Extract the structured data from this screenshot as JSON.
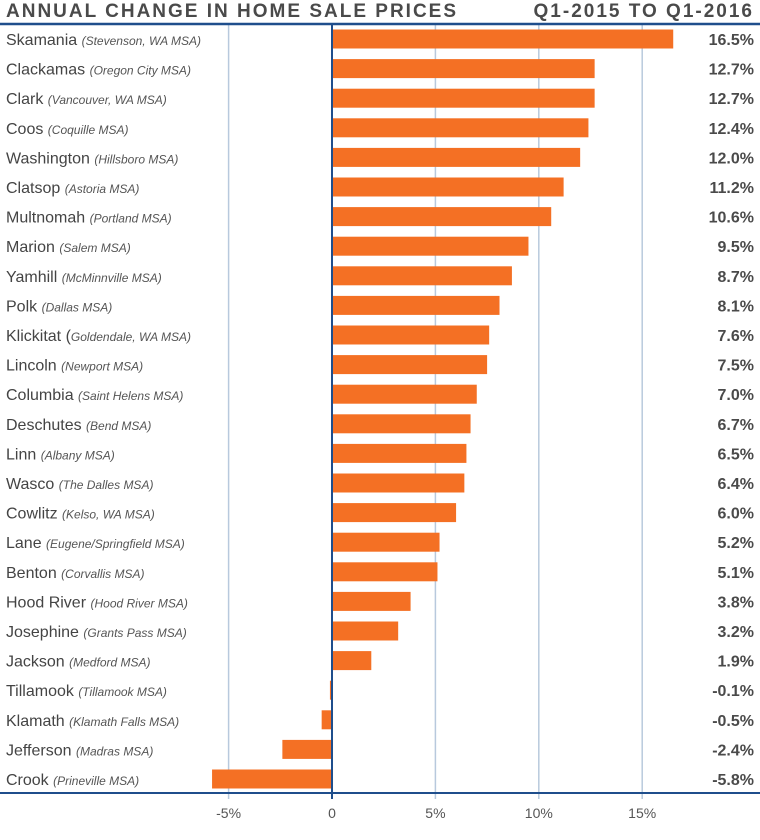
{
  "header": {
    "title": "ANNUAL CHANGE IN HOME SALE PRICES",
    "period": "Q1-2015 TO Q1-2016"
  },
  "colors": {
    "bar": "#f47024",
    "axis": "#1f4e8c",
    "grid": "#b8c9dd",
    "text": "#444444"
  },
  "chart_data": {
    "type": "bar",
    "orientation": "horizontal",
    "title": "ANNUAL CHANGE IN HOME SALE PRICES",
    "subtitle": "Q1-2015 TO Q1-2016",
    "xlabel": "",
    "ylabel": "",
    "xlim": [
      -6,
      17
    ],
    "grid": true,
    "x_ticks": [
      {
        "value": -5,
        "label": "-5%"
      },
      {
        "value": 0,
        "label": "0"
      },
      {
        "value": 5,
        "label": "5%"
      },
      {
        "value": 10,
        "label": "10%"
      },
      {
        "value": 15,
        "label": "15%"
      }
    ],
    "categories": [
      {
        "name": "Skamania",
        "msa": "(Stevenson, WA MSA)",
        "value": 16.5,
        "label": "16.5%"
      },
      {
        "name": "Clackamas",
        "msa": "(Oregon City MSA)",
        "value": 12.7,
        "label": "12.7%"
      },
      {
        "name": "Clark",
        "msa": "(Vancouver, WA MSA)",
        "value": 12.7,
        "label": "12.7%"
      },
      {
        "name": "Coos",
        "msa": "(Coquille MSA)",
        "value": 12.4,
        "label": "12.4%"
      },
      {
        "name": "Washington",
        "msa": "(Hillsboro MSA)",
        "value": 12.0,
        "label": "12.0%"
      },
      {
        "name": "Clatsop",
        "msa": "(Astoria MSA)",
        "value": 11.2,
        "label": "11.2%"
      },
      {
        "name": "Multnomah",
        "msa": "(Portland MSA)",
        "value": 10.6,
        "label": "10.6%"
      },
      {
        "name": "Marion",
        "msa": "(Salem MSA)",
        "value": 9.5,
        "label": "9.5%"
      },
      {
        "name": "Yamhill",
        "msa": "(McMinnville MSA)",
        "value": 8.7,
        "label": "8.7%"
      },
      {
        "name": "Polk",
        "msa": "(Dallas MSA)",
        "value": 8.1,
        "label": "8.1%"
      },
      {
        "name": "Klickitat (",
        "msa": "Goldendale, WA MSA)",
        "value": 7.6,
        "label": "7.6%"
      },
      {
        "name": "Lincoln",
        "msa": "(Newport MSA)",
        "value": 7.5,
        "label": "7.5%"
      },
      {
        "name": "Columbia",
        "msa": "(Saint Helens MSA)",
        "value": 7.0,
        "label": "7.0%"
      },
      {
        "name": "Deschutes",
        "msa": "(Bend MSA)",
        "value": 6.7,
        "label": "6.7%"
      },
      {
        "name": "Linn",
        "msa": "(Albany MSA)",
        "value": 6.5,
        "label": "6.5%"
      },
      {
        "name": "Wasco",
        "msa": "(The Dalles MSA)",
        "value": 6.4,
        "label": "6.4%"
      },
      {
        "name": "Cowlitz",
        "msa": "(Kelso, WA MSA)",
        "value": 6.0,
        "label": "6.0%"
      },
      {
        "name": "Lane",
        "msa": "(Eugene/Springfield MSA)",
        "value": 5.2,
        "label": "5.2%"
      },
      {
        "name": "Benton",
        "msa": "(Corvallis MSA)",
        "value": 5.1,
        "label": "5.1%"
      },
      {
        "name": "Hood River",
        "msa": "(Hood River MSA)",
        "value": 3.8,
        "label": "3.8%"
      },
      {
        "name": "Josephine",
        "msa": "(Grants Pass MSA)",
        "value": 3.2,
        "label": "3.2%"
      },
      {
        "name": "Jackson",
        "msa": "(Medford MSA)",
        "value": 1.9,
        "label": "1.9%"
      },
      {
        "name": "Tillamook",
        "msa": "(Tillamook MSA)",
        "value": -0.1,
        "label": "-0.1%"
      },
      {
        "name": "Klamath",
        "msa": "(Klamath Falls MSA)",
        "value": -0.5,
        "label": "-0.5%"
      },
      {
        "name": "Jefferson",
        "msa": "(Madras MSA)",
        "value": -2.4,
        "label": "-2.4%"
      },
      {
        "name": "Crook",
        "msa": "(Prineville MSA)",
        "value": -5.8,
        "label": "-5.8%"
      }
    ]
  }
}
